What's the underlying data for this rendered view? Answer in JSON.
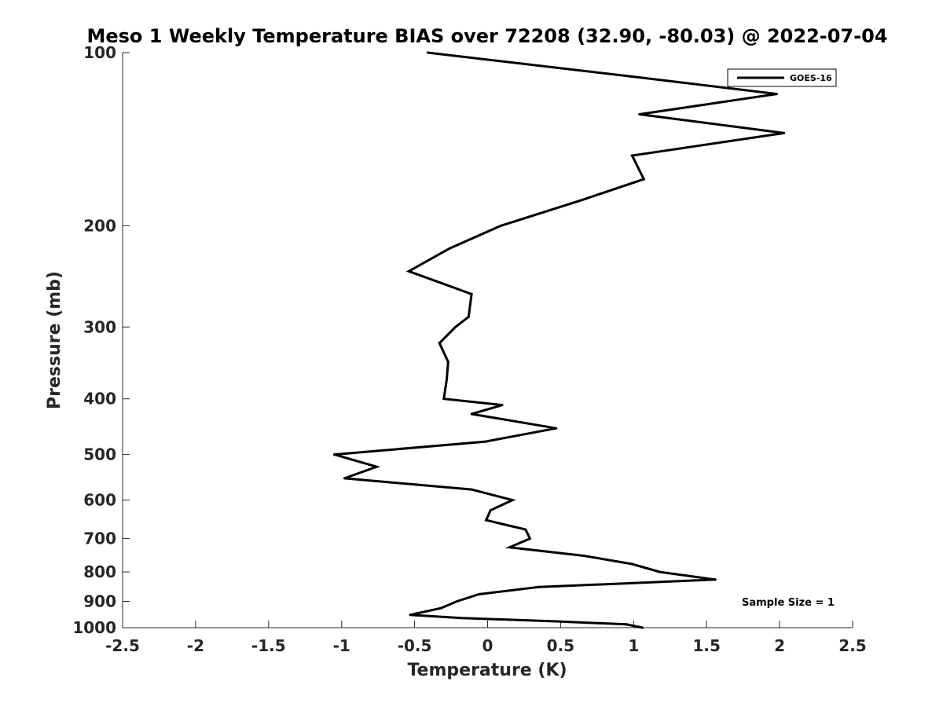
{
  "chart_data": {
    "type": "line",
    "title": "Meso 1 Weekly Temperature BIAS over 72208 (32.90, -80.03) @ 2022-07-04",
    "xlabel": "Temperature (K)",
    "ylabel": "Pressure (mb)",
    "xlim": [
      -2.5,
      2.5
    ],
    "ylim": [
      100,
      1000
    ],
    "y_scale": "log",
    "y_reversed": true,
    "grid": false,
    "legend_position": "top-right",
    "x_ticks": [
      -2.5,
      -2,
      -1.5,
      -1,
      -0.5,
      0,
      0.5,
      1,
      1.5,
      2,
      2.5
    ],
    "x_tick_labels": [
      "-2.5",
      "-2",
      "-1.5",
      "-1",
      "-0.5",
      "0",
      "0.5",
      "1",
      "1.5",
      "2",
      "2.5"
    ],
    "y_ticks": [
      100,
      200,
      300,
      400,
      500,
      600,
      700,
      800,
      900,
      1000
    ],
    "y_tick_labels": [
      "100",
      "200",
      "300",
      "400",
      "500",
      "600",
      "700",
      "800",
      "900",
      "1000"
    ],
    "series": [
      {
        "name": "GOES-16",
        "color": "#000000",
        "x": [
          -0.41,
          0.98,
          1.98,
          1.04,
          2.03,
          0.99,
          1.07,
          0.63,
          0.09,
          -0.26,
          -0.54,
          -0.11,
          -0.13,
          -0.22,
          -0.33,
          -0.27,
          -0.28,
          -0.3,
          0.1,
          -0.11,
          0.47,
          -0.02,
          -1.05,
          -0.76,
          -0.98,
          -0.11,
          0.17,
          0.02,
          -0.01,
          0.26,
          0.29,
          0.15,
          0.66,
          0.99,
          1.18,
          1.56,
          0.35,
          -0.06,
          -0.21,
          -0.32,
          -0.53,
          -0.18,
          0.47,
          0.95,
          1.06
        ],
        "y": [
          100,
          110,
          118,
          128,
          138,
          151,
          166,
          181,
          200,
          219,
          240,
          263,
          288,
          300,
          320,
          345,
          370,
          400,
          410,
          425,
          450,
          475,
          500,
          525,
          550,
          575,
          600,
          625,
          650,
          675,
          700,
          725,
          750,
          775,
          800,
          825,
          850,
          875,
          900,
          925,
          950,
          962,
          975,
          987,
          1000
        ]
      }
    ],
    "annotation": "Sample Size = 1"
  }
}
